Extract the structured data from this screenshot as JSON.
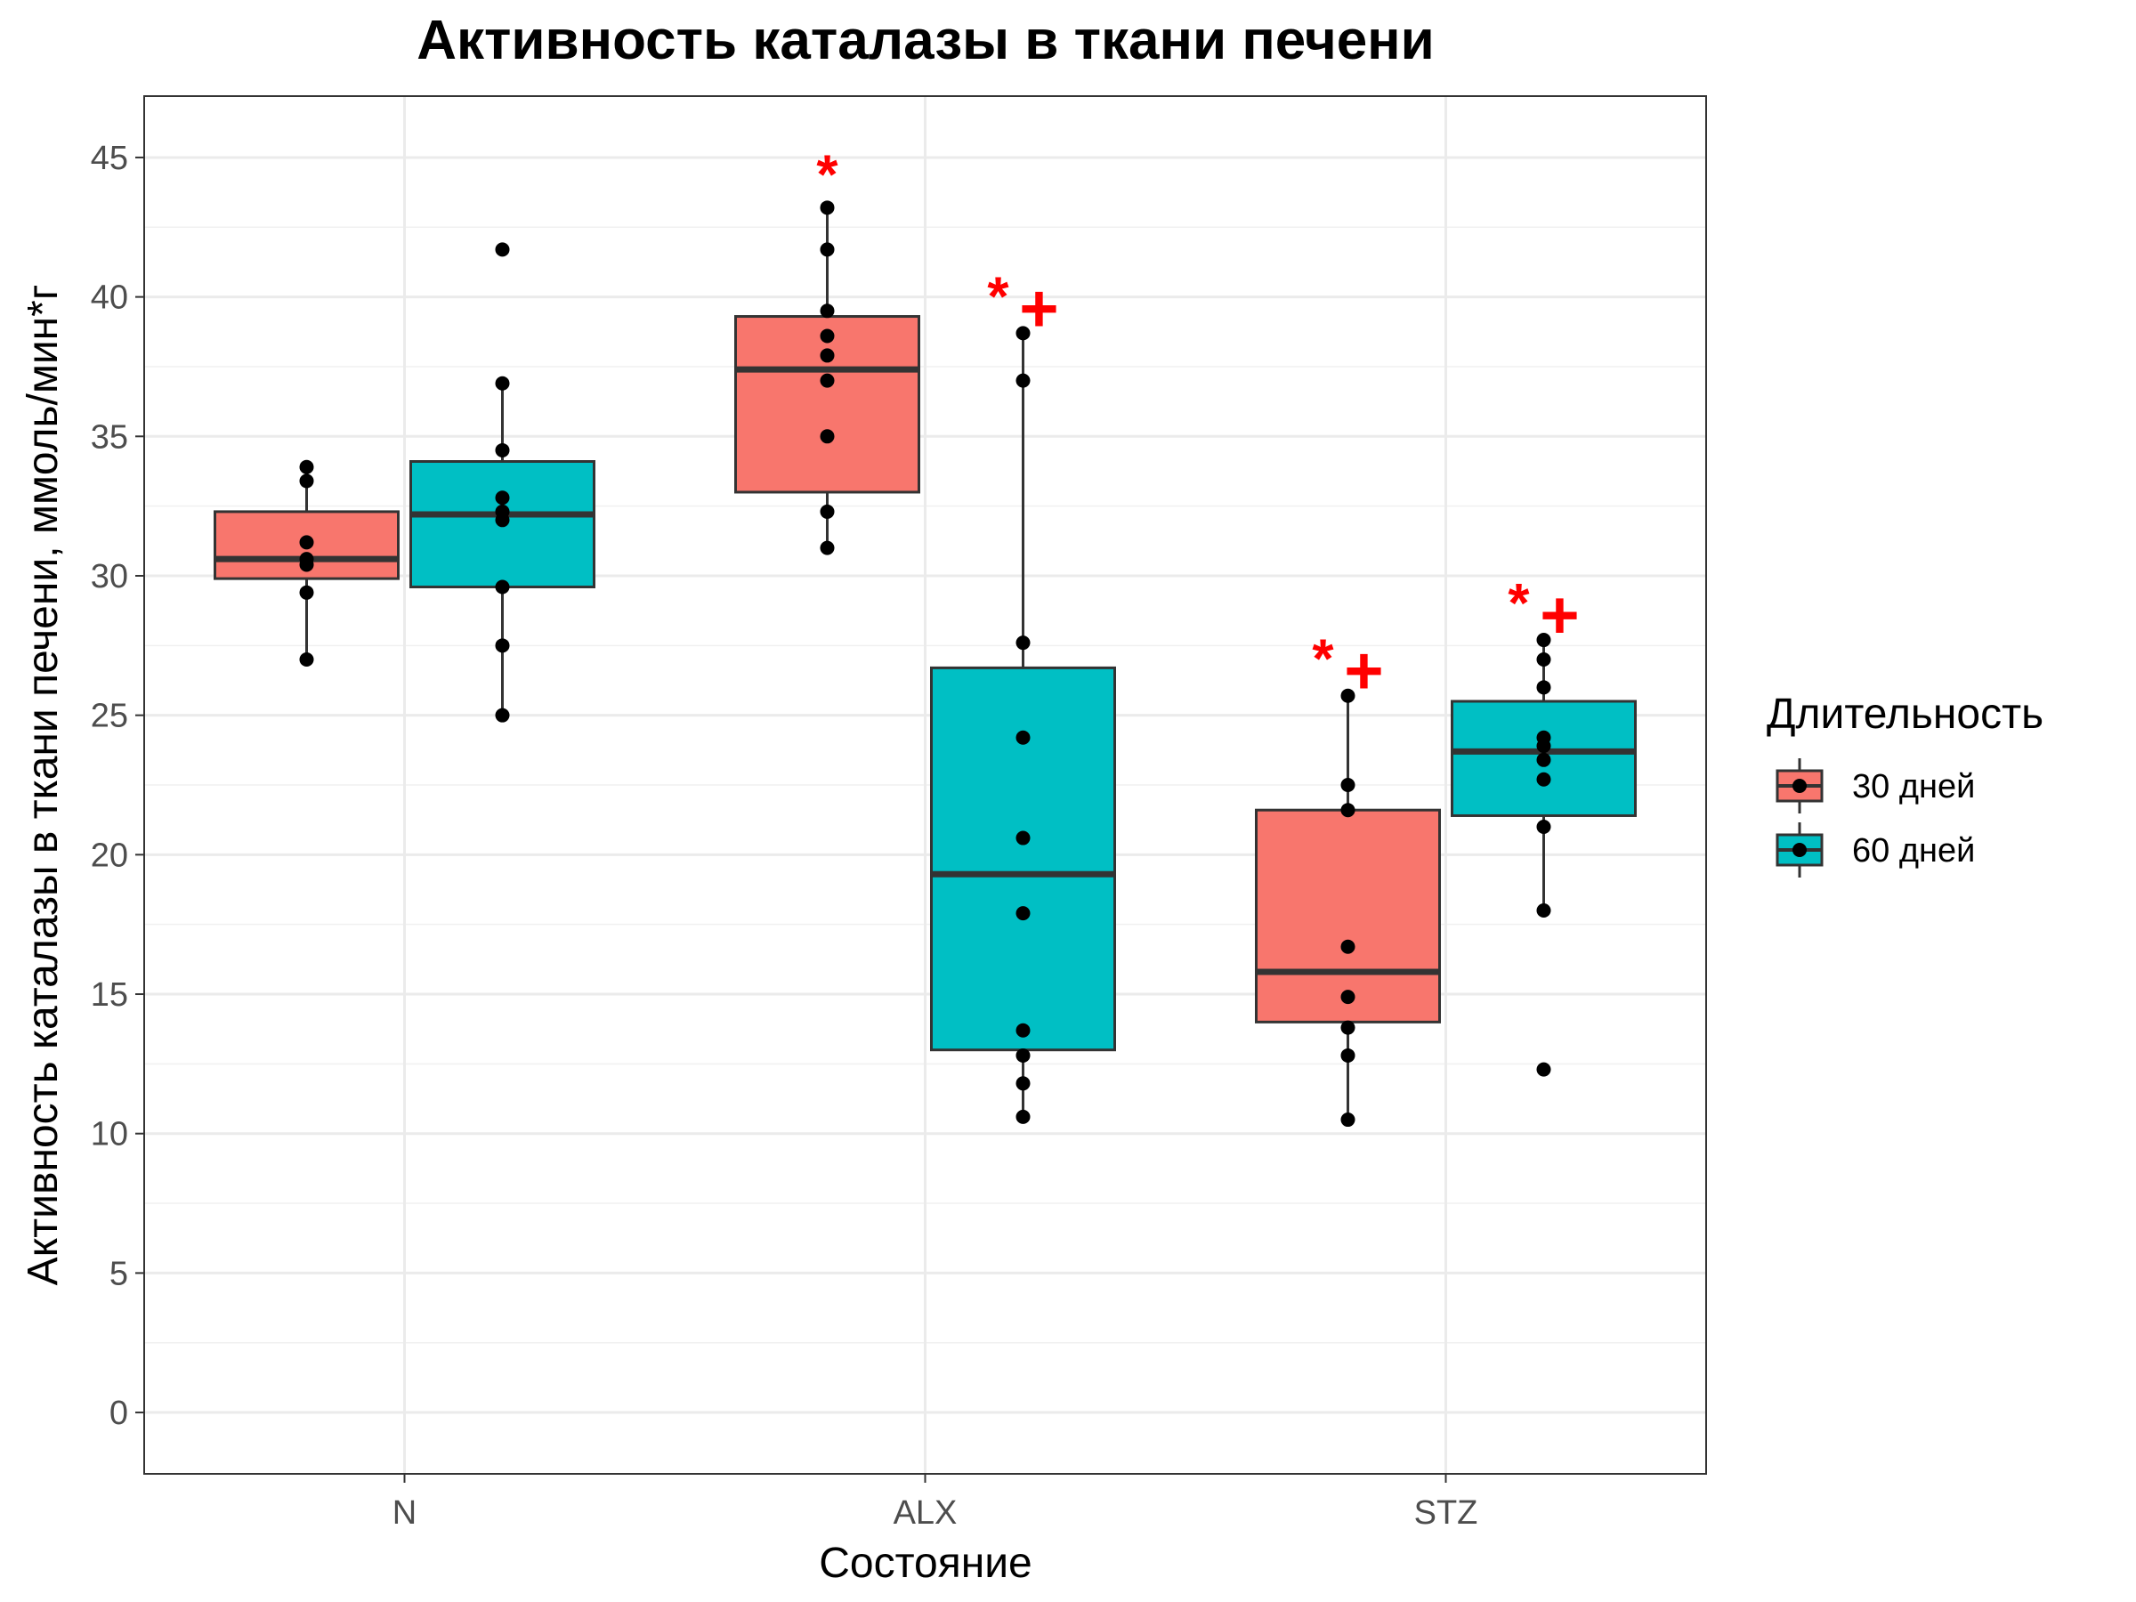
{
  "chart_data": {
    "type": "box",
    "title": "Активность каталазы в ткани печени",
    "xlabel": "Состояние",
    "ylabel": "Активность каталазы в ткани печени, ммоль/мин*г",
    "ylim": [
      -2.2,
      47.2
    ],
    "yticks": [
      0,
      5,
      10,
      15,
      20,
      25,
      30,
      35,
      40,
      45
    ],
    "categories": [
      "N",
      "ALX",
      "STZ"
    ],
    "legend": {
      "title": "Длительность",
      "position": "right",
      "entries": [
        "30 дней",
        "60 дней"
      ]
    },
    "colors": {
      "30 дней": "#F8766D",
      "60 дней": "#00BFC4",
      "annotation": "#FF0000"
    },
    "series": [
      {
        "name": "30 дней",
        "boxes": [
          {
            "category": "N",
            "whisker_low": 27.0,
            "q1": 29.9,
            "median": 30.6,
            "q3": 32.3,
            "whisker_high": 33.9,
            "points": [
              33.9,
              33.4,
              31.2,
              30.6,
              30.4,
              29.4,
              27.0
            ],
            "annotation": ""
          },
          {
            "category": "ALX",
            "whisker_low": 31.0,
            "q1": 33.0,
            "median": 37.4,
            "q3": 39.3,
            "whisker_high": 43.2,
            "points": [
              43.2,
              41.7,
              39.5,
              38.6,
              37.9,
              37.0,
              35.0,
              32.3,
              31.0
            ],
            "annotation": "*"
          },
          {
            "category": "STZ",
            "whisker_low": 10.5,
            "q1": 14.0,
            "median": 15.8,
            "q3": 21.6,
            "whisker_high": 25.7,
            "points": [
              25.7,
              22.5,
              21.6,
              16.7,
              14.9,
              13.8,
              12.8,
              10.5
            ],
            "annotation": "*+"
          }
        ]
      },
      {
        "name": "60 дней",
        "boxes": [
          {
            "category": "N",
            "whisker_low": 25.0,
            "q1": 29.6,
            "median": 32.2,
            "q3": 34.1,
            "whisker_high": 36.9,
            "points": [
              41.7,
              36.9,
              34.5,
              32.8,
              32.3,
              32.0,
              29.6,
              27.5,
              25.0
            ],
            "annotation": ""
          },
          {
            "category": "ALX",
            "whisker_low": 10.6,
            "q1": 13.0,
            "median": 19.3,
            "q3": 26.7,
            "whisker_high": 38.7,
            "points": [
              38.7,
              37.0,
              27.6,
              24.2,
              20.6,
              17.9,
              13.7,
              12.8,
              11.8,
              10.6
            ],
            "annotation": "*+"
          },
          {
            "category": "STZ",
            "whisker_low": 18.0,
            "q1": 21.4,
            "median": 23.7,
            "q3": 25.5,
            "whisker_high": 27.7,
            "points": [
              27.7,
              27.0,
              26.0,
              24.2,
              23.9,
              23.4,
              22.7,
              21.0,
              18.0,
              12.3
            ],
            "annotation": "*+"
          }
        ]
      }
    ]
  }
}
